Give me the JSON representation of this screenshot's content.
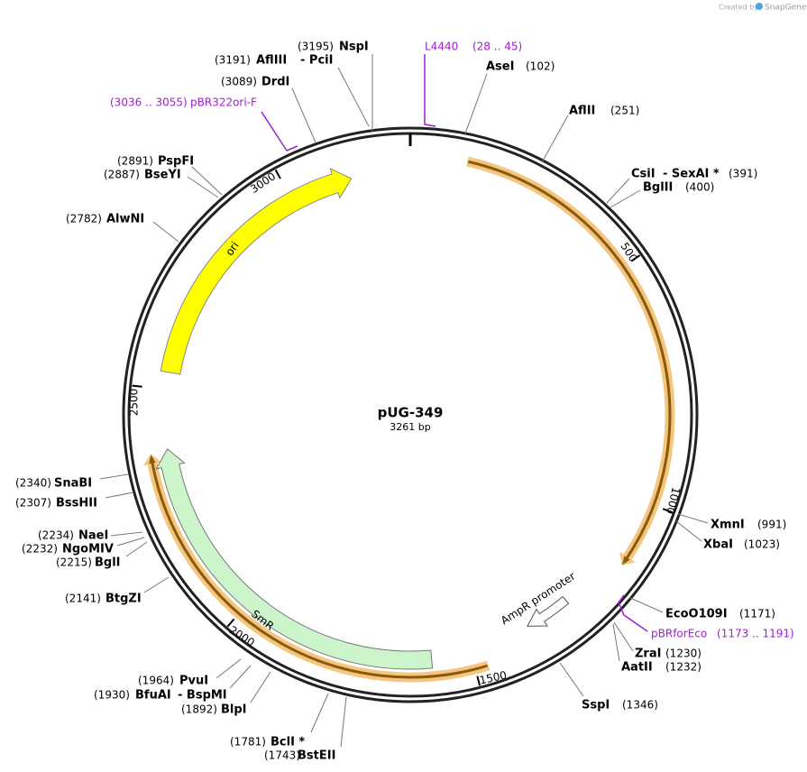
{
  "header": {
    "credit": "Created by",
    "brand": "SnapGene"
  },
  "plasmid": {
    "name": "pUG-349",
    "length": "3261 bp"
  },
  "ticks": [
    "500",
    "1000",
    "1500",
    "2000",
    "2500",
    "3000"
  ],
  "features": [
    {
      "label": "ori"
    },
    {
      "label": "SmR"
    },
    {
      "label": "AmpR promoter"
    }
  ],
  "primers": [
    {
      "name": "L4440",
      "range": "(28 .. 45)"
    },
    {
      "name": "pBRforEco",
      "range": "(1173 .. 1191)"
    },
    {
      "name": "pBR322ori-F",
      "range": "(3036 .. 3055)"
    }
  ],
  "sites": [
    {
      "name": "AseI",
      "position": "(102)"
    },
    {
      "name": "AflII",
      "position": "(251)"
    },
    {
      "name": "CsiI",
      "name2": "- SexAI *",
      "position": "(391)"
    },
    {
      "name": "BglII",
      "position": "(400)"
    },
    {
      "name": "XmnI",
      "position": "(991)"
    },
    {
      "name": "XbaI",
      "position": "(1023)"
    },
    {
      "name": "EcoO109I",
      "position": "(1171)"
    },
    {
      "name": "ZraI",
      "position": "(1230)"
    },
    {
      "name": "AatII",
      "position": "(1232)"
    },
    {
      "name": "SspI",
      "position": "(1346)"
    },
    {
      "name": "BstEII",
      "position": "(1743)"
    },
    {
      "name": "BclI *",
      "position": "(1781)"
    },
    {
      "name": "BlpI",
      "position": "(1892)"
    },
    {
      "name": "BfuAI",
      "name2": "- BspMI",
      "position": "(1930)"
    },
    {
      "name": "PvuI",
      "position": "(1964)"
    },
    {
      "name": "BtgZI",
      "position": "(2141)"
    },
    {
      "name": "BglI",
      "position": "(2215)"
    },
    {
      "name": "NgoMIV",
      "position": "(2232)"
    },
    {
      "name": "NaeI",
      "position": "(2234)"
    },
    {
      "name": "BssHII",
      "position": "(2307)"
    },
    {
      "name": "SnaBI",
      "position": "(2340)"
    },
    {
      "name": "AlwNI",
      "position": "(2782)"
    },
    {
      "name": "BseYI",
      "position": "(2887)"
    },
    {
      "name": "PspFI",
      "position": "(2891)"
    },
    {
      "name": "DrdI",
      "position": "(3089)"
    },
    {
      "name": "AflIII",
      "name2": "- PciI",
      "position": "(3191)"
    },
    {
      "name": "NspI",
      "position": "(3195)"
    }
  ]
}
